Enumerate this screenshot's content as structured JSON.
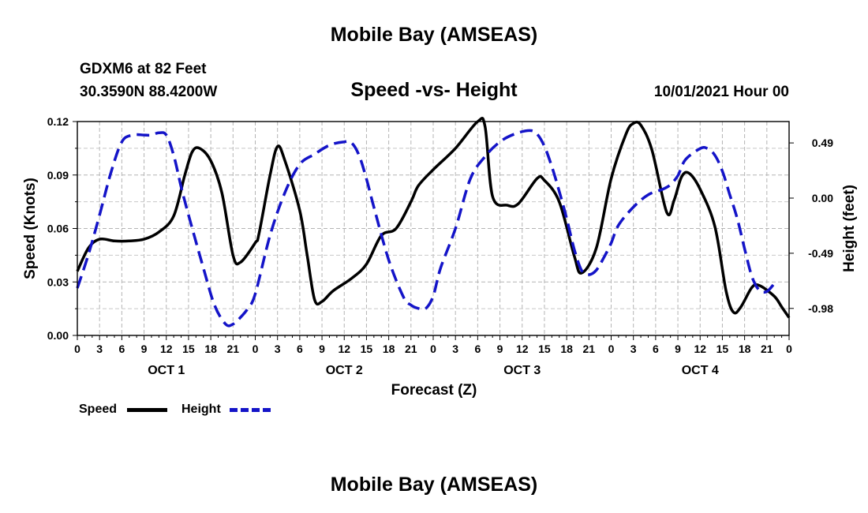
{
  "page": {
    "top_title": "Mobile Bay (AMSEAS)",
    "bottom_title": "Mobile Bay (AMSEAS)",
    "station_line": "GDXM6 at 82 Feet",
    "coords_line": "30.3590N  88.4200W",
    "date_line": "10/01/2021 Hour 00"
  },
  "legend": {
    "speed_label": "Speed",
    "height_label": "Height"
  },
  "chart_data": {
    "type": "line",
    "title": "Speed -vs- Height",
    "xlabel": "Forecast (Z)",
    "ylabel": "Speed (Knots)",
    "y2label": "Height (feet)",
    "grid": true,
    "x_range_hours": [
      0,
      96
    ],
    "x_tick_labels": [
      "0",
      "3",
      "6",
      "9",
      "12",
      "15",
      "18",
      "21",
      "0",
      "3",
      "6",
      "9",
      "12",
      "15",
      "18",
      "21",
      "0",
      "3",
      "6",
      "9",
      "12",
      "15",
      "18",
      "21",
      "0",
      "3",
      "6",
      "9",
      "12",
      "15",
      "18",
      "21",
      "0"
    ],
    "day_labels": [
      {
        "label": "OCT 1",
        "hour": 12
      },
      {
        "label": "OCT 2",
        "hour": 36
      },
      {
        "label": "OCT 3",
        "hour": 60
      },
      {
        "label": "OCT 4",
        "hour": 84
      }
    ],
    "ylim": [
      0,
      0.12
    ],
    "y_ticks": [
      "0.00",
      "0.03",
      "0.06",
      "0.09",
      "0.12"
    ],
    "y2lim": [
      -1.22,
      0.68
    ],
    "y2_ticks": [
      {
        "label": "0.49",
        "value": 0.49
      },
      {
        "label": "0.00",
        "value": 0.0
      },
      {
        "label": "-0.49",
        "value": -0.49
      },
      {
        "label": "-0.98",
        "value": -0.98
      }
    ],
    "series": [
      {
        "name": "Speed",
        "axis": "left",
        "color": "#000000",
        "dash": "solid",
        "points": [
          [
            0,
            0.036
          ],
          [
            1.5,
            0.049
          ],
          [
            3,
            0.054
          ],
          [
            5,
            0.053
          ],
          [
            7,
            0.053
          ],
          [
            9,
            0.054
          ],
          [
            11,
            0.058
          ],
          [
            13,
            0.067
          ],
          [
            14.5,
            0.09
          ],
          [
            15.5,
            0.103
          ],
          [
            16.5,
            0.105
          ],
          [
            18,
            0.098
          ],
          [
            19.5,
            0.08
          ],
          [
            21,
            0.045
          ],
          [
            22,
            0.041
          ],
          [
            24,
            0.052
          ],
          [
            24.5,
            0.057
          ],
          [
            26,
            0.09
          ],
          [
            27,
            0.106
          ],
          [
            28,
            0.098
          ],
          [
            30,
            0.07
          ],
          [
            31,
            0.045
          ],
          [
            32,
            0.02
          ],
          [
            33,
            0.019
          ],
          [
            34.5,
            0.025
          ],
          [
            37,
            0.032
          ],
          [
            39,
            0.04
          ],
          [
            41,
            0.056
          ],
          [
            43,
            0.06
          ],
          [
            45,
            0.075
          ],
          [
            46,
            0.084
          ],
          [
            48,
            0.093
          ],
          [
            51,
            0.105
          ],
          [
            54,
            0.12
          ],
          [
            55,
            0.117
          ],
          [
            56,
            0.078
          ],
          [
            58,
            0.073
          ],
          [
            59.5,
            0.074
          ],
          [
            62,
            0.088
          ],
          [
            63,
            0.087
          ],
          [
            65,
            0.075
          ],
          [
            67,
            0.045
          ],
          [
            68,
            0.035
          ],
          [
            70,
            0.049
          ],
          [
            72,
            0.088
          ],
          [
            74,
            0.113
          ],
          [
            75,
            0.119
          ],
          [
            76,
            0.118
          ],
          [
            77.5,
            0.104
          ],
          [
            79.5,
            0.069
          ],
          [
            80.5,
            0.076
          ],
          [
            81.5,
            0.089
          ],
          [
            82.5,
            0.091
          ],
          [
            84,
            0.082
          ],
          [
            86,
            0.061
          ],
          [
            87.5,
            0.025
          ],
          [
            88.5,
            0.013
          ],
          [
            89.5,
            0.016
          ],
          [
            91,
            0.027
          ],
          [
            92,
            0.028
          ],
          [
            94,
            0.022
          ],
          [
            95,
            0.016
          ],
          [
            96,
            0.01
          ]
        ]
      },
      {
        "name": "Height",
        "axis": "right",
        "color": "#1414c8",
        "dash": "dashed",
        "points": [
          [
            0,
            -0.8
          ],
          [
            1.5,
            -0.5
          ],
          [
            3,
            -0.15
          ],
          [
            4.5,
            0.22
          ],
          [
            6,
            0.5
          ],
          [
            7.5,
            0.56
          ],
          [
            9,
            0.56
          ],
          [
            10,
            0.56
          ],
          [
            11,
            0.58
          ],
          [
            12,
            0.56
          ],
          [
            13,
            0.38
          ],
          [
            14,
            0.1
          ],
          [
            15,
            -0.15
          ],
          [
            17,
            -0.62
          ],
          [
            18.5,
            -0.95
          ],
          [
            20,
            -1.12
          ],
          [
            21,
            -1.12
          ],
          [
            22,
            -1.06
          ],
          [
            23,
            -0.98
          ],
          [
            24,
            -0.85
          ],
          [
            26,
            -0.33
          ],
          [
            28,
            0.05
          ],
          [
            30,
            0.3
          ],
          [
            32,
            0.39
          ],
          [
            34,
            0.47
          ],
          [
            36,
            0.5
          ],
          [
            37,
            0.49
          ],
          [
            38,
            0.38
          ],
          [
            39,
            0.17
          ],
          [
            40,
            -0.08
          ],
          [
            42,
            -0.55
          ],
          [
            44,
            -0.88
          ],
          [
            45,
            -0.95
          ],
          [
            46,
            -0.98
          ],
          [
            47,
            -0.98
          ],
          [
            48,
            -0.87
          ],
          [
            49,
            -0.62
          ],
          [
            51,
            -0.27
          ],
          [
            53,
            0.17
          ],
          [
            55,
            0.37
          ],
          [
            57,
            0.5
          ],
          [
            59,
            0.57
          ],
          [
            61,
            0.6
          ],
          [
            62,
            0.57
          ],
          [
            63,
            0.46
          ],
          [
            64,
            0.28
          ],
          [
            65,
            0.06
          ],
          [
            66,
            -0.18
          ],
          [
            67,
            -0.45
          ],
          [
            68,
            -0.64
          ],
          [
            69,
            -0.68
          ],
          [
            70,
            -0.64
          ],
          [
            71,
            -0.53
          ],
          [
            72,
            -0.4
          ],
          [
            73,
            -0.24
          ],
          [
            75,
            -0.08
          ],
          [
            77,
            0.03
          ],
          [
            79,
            0.08
          ],
          [
            80,
            0.12
          ],
          [
            81,
            0.2
          ],
          [
            82,
            0.34
          ],
          [
            84,
            0.44
          ],
          [
            85,
            0.44
          ],
          [
            86,
            0.38
          ],
          [
            87,
            0.24
          ],
          [
            88,
            0.03
          ],
          [
            89,
            -0.18
          ],
          [
            90,
            -0.45
          ],
          [
            91,
            -0.7
          ],
          [
            92,
            -0.82
          ],
          [
            93,
            -0.83
          ],
          [
            94,
            -0.76
          ]
        ]
      }
    ]
  }
}
